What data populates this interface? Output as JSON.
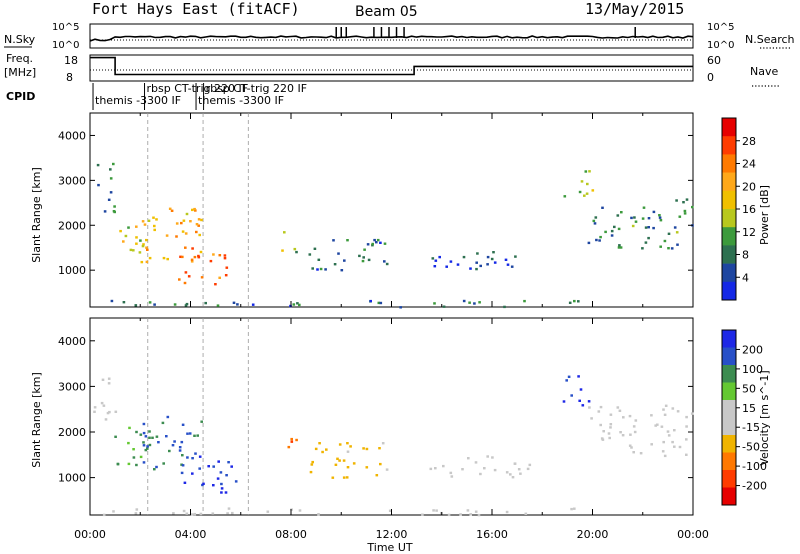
{
  "header": {
    "title": "Fort Hays East (fitACF)",
    "beam": "Beam 05",
    "date": "13/May/2015"
  },
  "panels": {
    "nsky_label": "N.Sky",
    "nsky_ticks": [
      "10^5",
      "10^0"
    ],
    "nsearch_label": "N.Search",
    "nsearch_ticks": [
      "10^5",
      "10^0"
    ],
    "freq_label_1": "Freq.",
    "freq_label_2": "[MHz]",
    "freq_ticks": [
      "18",
      "8"
    ],
    "nave_label": "Nave",
    "nave_ticks": [
      "60",
      "0"
    ],
    "cpid_label": "CPID",
    "cpid_entries": [
      {
        "text": "themis -3300 IF",
        "t": 0.2,
        "row": 1
      },
      {
        "text": "rbsp CT-trig 220 IF",
        "t": 2.25,
        "row": 0
      },
      {
        "text": "rbsp CT-trig 220 IF",
        "t": 4.6,
        "row": 0
      },
      {
        "text": "themis -3300 IF",
        "t": 4.3,
        "row": 1
      }
    ]
  },
  "power_colorbar": {
    "label": "Power [dB]",
    "ticks": [
      "28",
      "24",
      "20",
      "16",
      "12",
      "8",
      "4"
    ],
    "colors": [
      "#e60000",
      "#ff3c00",
      "#ff7a00",
      "#ffa81a",
      "#f0c000",
      "#b8c81e",
      "#3c9a3c",
      "#2d7050",
      "#1e46a0",
      "#1428e6"
    ]
  },
  "velocity_colorbar": {
    "label": "Velocity [m s^-1]",
    "ticks": [
      "200",
      "100",
      "50",
      "15",
      "-15",
      "-50",
      "-100",
      "-200"
    ],
    "colors": [
      "#1e28e6",
      "#2850c8",
      "#3c8c50",
      "#64c832",
      "#c8c8c8",
      "#c8c8c8",
      "#f0b400",
      "#ff7800",
      "#ff3c00",
      "#e60000"
    ]
  },
  "axes": {
    "y_label": "Slant Range [km]",
    "y_ticks": [
      "4000",
      "3000",
      "2000",
      "1000"
    ],
    "x_label": "Time UT",
    "x_ticks": [
      "00:00",
      "04:00",
      "08:00",
      "12:00",
      "16:00",
      "20:00",
      "00:00"
    ]
  },
  "chart_data": {
    "type": "heatmap",
    "title": "Fort Hays East (fitACF)",
    "xlabel": "Time UT",
    "ylabel": "Slant Range [km]",
    "xlim": [
      0,
      24
    ],
    "ylim": [
      180,
      4500
    ],
    "x_units": "hours UT",
    "freq_series": [
      {
        "t": 0,
        "mhz": 17
      },
      {
        "t": 1.0,
        "mhz": 10.5
      },
      {
        "t": 12.9,
        "mhz": 13.6
      },
      {
        "t": 24,
        "mhz": 13.6
      }
    ],
    "nsky_level": "10^0-10^1",
    "regions": [
      {
        "t0": 0.1,
        "t1": 1.0,
        "r0": 2300,
        "r1": 3400,
        "power": 8,
        "velocity": 15
      },
      {
        "t0": 0.9,
        "t1": 2.5,
        "r0": 1300,
        "r1": 2200,
        "power": 16,
        "velocity": 100
      },
      {
        "t0": 2.0,
        "t1": 4.5,
        "r0": 1200,
        "r1": 2400,
        "power": 20,
        "velocity": 150
      },
      {
        "t0": 3.5,
        "t1": 5.8,
        "r0": 700,
        "r1": 1600,
        "power": 24,
        "velocity": 200
      },
      {
        "t0": 7.5,
        "t1": 8.2,
        "r0": 1400,
        "r1": 1900,
        "power": 12,
        "velocity": -150
      },
      {
        "t0": 8.6,
        "t1": 11.8,
        "r0": 1000,
        "r1": 1800,
        "power": 8,
        "velocity": -70
      },
      {
        "t0": 13.5,
        "t1": 17.5,
        "r0": 1000,
        "r1": 1500,
        "power": 4,
        "velocity": 0
      },
      {
        "t0": 18.8,
        "t1": 20.0,
        "r0": 2600,
        "r1": 3300,
        "power": 12,
        "velocity": 200
      },
      {
        "t0": 19.8,
        "t1": 24.0,
        "r0": 1500,
        "r1": 2600,
        "power": 8,
        "velocity": 0
      },
      {
        "t0": 0.2,
        "t1": 20.0,
        "r0": 200,
        "r1": 350,
        "power": 8,
        "velocity": -15
      }
    ]
  }
}
